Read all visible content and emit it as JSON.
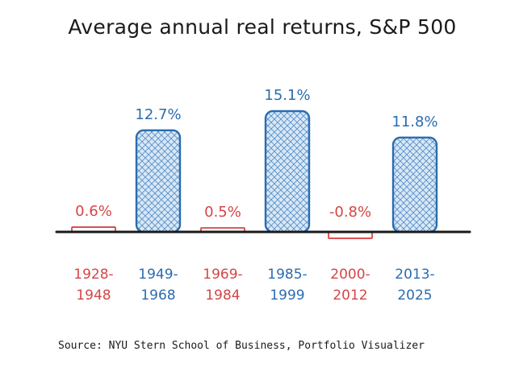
{
  "chart_data": {
    "type": "bar",
    "title": "Average annual real returns, S&P 500",
    "categories": [
      [
        "1928-",
        "1948"
      ],
      [
        "1949-",
        "1968"
      ],
      [
        "1969-",
        "1984"
      ],
      [
        "1985-",
        "1999"
      ],
      [
        "2000-",
        "2012"
      ],
      [
        "2013-",
        "2025"
      ]
    ],
    "values": [
      0.6,
      12.7,
      0.5,
      15.1,
      -0.8,
      11.8
    ],
    "value_labels": [
      "0.6%",
      "12.7%",
      "0.5%",
      "15.1%",
      "-0.8%",
      "11.8%"
    ],
    "xlabel": "",
    "ylabel": "",
    "ylim": [
      -0.8,
      15.1
    ],
    "grid": false,
    "legend": "none",
    "colors": {
      "positive_large": "#2b6cb0",
      "positive_small": "#d64545",
      "negative": "#d64545",
      "fill": "#cfe3f5",
      "axis": "#1a1a1a"
    },
    "source": "Source: NYU Stern School of Business, Portfolio Visualizer"
  }
}
